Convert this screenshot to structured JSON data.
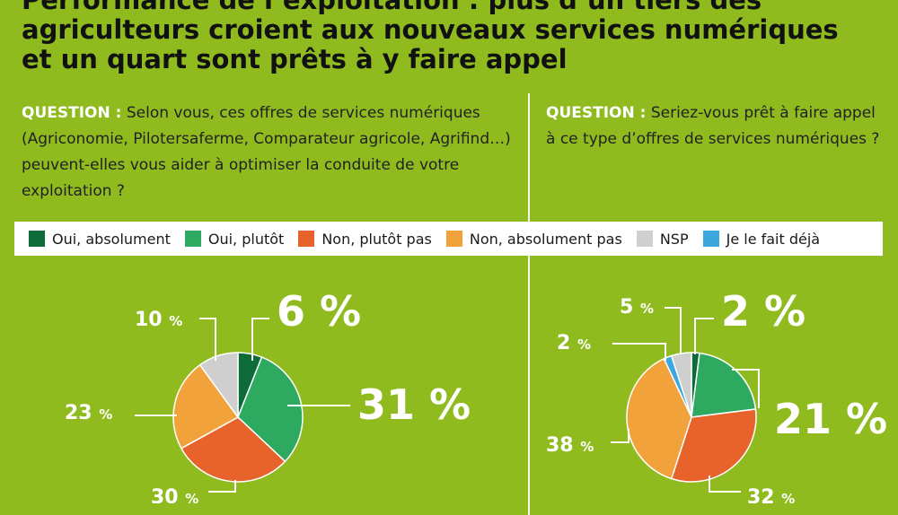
{
  "header": {
    "title_line1": "Performance de l’exploitation : plus d’un tiers des",
    "title_line2": "agriculteurs croient aux nouveaux services numériques",
    "title_line3": "et un quart sont prêts à y faire appel"
  },
  "questions": [
    {
      "label": "QUESTION :",
      "text": "Selon vous, ces offres de services numériques (Agriconomie, Pilotersaferme, Comparateur agricole, Agrifind…) peuvent-elles vous aider à optimiser la conduite de votre exploitation ?"
    },
    {
      "label": "QUESTION :",
      "text": "Seriez-vous prêt à faire appel à ce type d’offres de services numériques ?"
    }
  ],
  "legend": [
    {
      "label": "Oui, absolument",
      "color": "#0d6b3a"
    },
    {
      "label": "Oui, plutôt",
      "color": "#2daa5f"
    },
    {
      "label": "Non, plutôt pas",
      "color": "#e8622b"
    },
    {
      "label": "Non, absolument pas",
      "color": "#f2a23a"
    },
    {
      "label": "NSP",
      "color": "#cfcfcf"
    },
    {
      "label": "Je le fait déjà",
      "color": "#3ba7dc"
    }
  ],
  "chart_data": [
    {
      "type": "pie",
      "categories": [
        "Oui, absolument",
        "Oui, plutôt",
        "Non, plutôt pas",
        "Non, absolument pas",
        "NSP"
      ],
      "values": [
        6,
        31,
        30,
        23,
        10
      ],
      "value_labels": [
        "6 %",
        "31 %",
        "30 %",
        "23 %",
        "10 %"
      ]
    },
    {
      "type": "pie",
      "categories": [
        "Oui, absolument",
        "Oui, plutôt",
        "Non, plutôt pas",
        "Non, absolument pas",
        "Je le fait déjà",
        "NSP"
      ],
      "values": [
        2,
        21,
        32,
        38,
        2,
        5
      ],
      "value_labels": [
        "2 %",
        "21 %",
        "32 %",
        "38 %",
        "2 %",
        "5 %"
      ]
    }
  ]
}
